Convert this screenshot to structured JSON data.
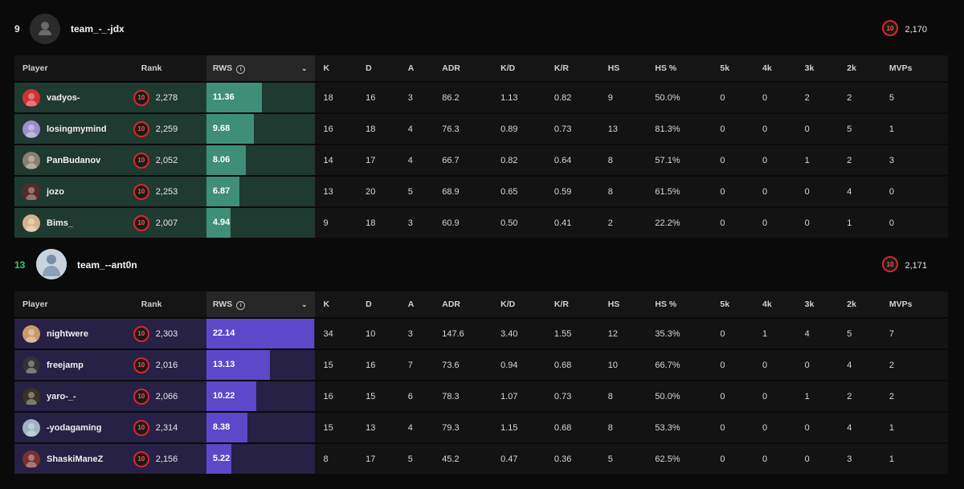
{
  "teams": [
    {
      "score": "9",
      "score_color": "#e6e6e6",
      "name": "team_-_-jdx",
      "elo": "2,170",
      "accent": "#3f8f78",
      "headers": [
        "Player",
        "Rank",
        "RWS",
        "K",
        "D",
        "A",
        "ADR",
        "K/D",
        "K/R",
        "HS",
        "HS %",
        "5k",
        "4k",
        "3k",
        "2k",
        "MVPs"
      ],
      "players": [
        {
          "name": "vadyos-",
          "level": "10",
          "elo": "2,278",
          "rws": "11.36",
          "rws_frac": 0.508,
          "k": "18",
          "d": "16",
          "a": "3",
          "adr": "86.2",
          "kd": "1.13",
          "kr": "0.82",
          "hs": "9",
          "hsp": "50.0%",
          "k5": "0",
          "k4": "0",
          "k3": "2",
          "k2": "2",
          "mvp": "5"
        },
        {
          "name": "losingmymind",
          "level": "10",
          "elo": "2,259",
          "rws": "9.68",
          "rws_frac": 0.433,
          "k": "16",
          "d": "18",
          "a": "4",
          "adr": "76.3",
          "kd": "0.89",
          "kr": "0.73",
          "hs": "13",
          "hsp": "81.3%",
          "k5": "0",
          "k4": "0",
          "k3": "0",
          "k2": "5",
          "mvp": "1"
        },
        {
          "name": "PanBudanov",
          "level": "10",
          "elo": "2,052",
          "rws": "8.06",
          "rws_frac": 0.36,
          "k": "14",
          "d": "17",
          "a": "4",
          "adr": "66.7",
          "kd": "0.82",
          "kr": "0.64",
          "hs": "8",
          "hsp": "57.1%",
          "k5": "0",
          "k4": "0",
          "k3": "1",
          "k2": "2",
          "mvp": "3"
        },
        {
          "name": "jozo",
          "level": "10",
          "elo": "2,253",
          "rws": "6.87",
          "rws_frac": 0.307,
          "k": "13",
          "d": "20",
          "a": "5",
          "adr": "68.9",
          "kd": "0.65",
          "kr": "0.59",
          "hs": "8",
          "hsp": "61.5%",
          "k5": "0",
          "k4": "0",
          "k3": "0",
          "k2": "4",
          "mvp": "0"
        },
        {
          "name": "Bims_",
          "level": "10",
          "elo": "2,007",
          "rws": "4.94",
          "rws_frac": 0.221,
          "k": "9",
          "d": "18",
          "a": "3",
          "adr": "60.9",
          "kd": "0.50",
          "kr": "0.41",
          "hs": "2",
          "hsp": "22.2%",
          "k5": "0",
          "k4": "0",
          "k3": "0",
          "k2": "1",
          "mvp": "0"
        }
      ]
    },
    {
      "score": "13",
      "score_color": "#2ecc71",
      "name": "team_--ant0n",
      "elo": "2,171",
      "accent": "#5c48c9",
      "headers": [
        "Player",
        "Rank",
        "RWS",
        "K",
        "D",
        "A",
        "ADR",
        "K/D",
        "K/R",
        "HS",
        "HS %",
        "5k",
        "4k",
        "3k",
        "2k",
        "MVPs"
      ],
      "players": [
        {
          "name": "nightwere",
          "level": "10",
          "elo": "2,303",
          "rws": "22.14",
          "rws_frac": 0.99,
          "k": "34",
          "d": "10",
          "a": "3",
          "adr": "147.6",
          "kd": "3.40",
          "kr": "1.55",
          "hs": "12",
          "hsp": "35.3%",
          "k5": "0",
          "k4": "1",
          "k3": "4",
          "k2": "5",
          "mvp": "7"
        },
        {
          "name": "freejamp",
          "level": "10",
          "elo": "2,016",
          "rws": "13.13",
          "rws_frac": 0.587,
          "k": "15",
          "d": "16",
          "a": "7",
          "adr": "73.6",
          "kd": "0.94",
          "kr": "0.68",
          "hs": "10",
          "hsp": "66.7%",
          "k5": "0",
          "k4": "0",
          "k3": "0",
          "k2": "4",
          "mvp": "2"
        },
        {
          "name": "yaro-_-",
          "level": "10",
          "elo": "2,066",
          "rws": "10.22",
          "rws_frac": 0.457,
          "k": "16",
          "d": "15",
          "a": "6",
          "adr": "78.3",
          "kd": "1.07",
          "kr": "0.73",
          "hs": "8",
          "hsp": "50.0%",
          "k5": "0",
          "k4": "0",
          "k3": "1",
          "k2": "2",
          "mvp": "2"
        },
        {
          "name": "-yodagaming",
          "level": "10",
          "elo": "2,314",
          "rws": "8.38",
          "rws_frac": 0.375,
          "k": "15",
          "d": "13",
          "a": "4",
          "adr": "79.3",
          "kd": "1.15",
          "kr": "0.68",
          "hs": "8",
          "hsp": "53.3%",
          "k5": "0",
          "k4": "0",
          "k3": "0",
          "k2": "4",
          "mvp": "1"
        },
        {
          "name": "ShaskiManeZ",
          "level": "10",
          "elo": "2,156",
          "rws": "5.22",
          "rws_frac": 0.233,
          "k": "8",
          "d": "17",
          "a": "5",
          "adr": "45.2",
          "kd": "0.47",
          "kr": "0.36",
          "hs": "5",
          "hsp": "62.5%",
          "k5": "0",
          "k4": "0",
          "k3": "0",
          "k2": "3",
          "mvp": "1"
        }
      ]
    }
  ]
}
